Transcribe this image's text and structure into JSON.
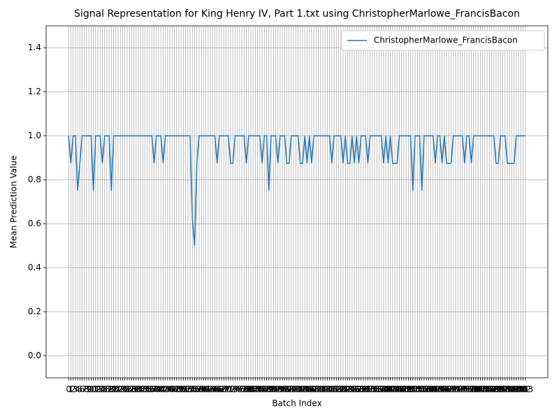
{
  "chart_data": {
    "type": "line",
    "title": "Signal Representation for King Henry IV, Part 1.txt using ChristopherMarlowe_FrancisBacon",
    "x_label": "Batch Index",
    "y_label": "Mean Prediction Value",
    "x": [
      0,
      1,
      2,
      3,
      4,
      5,
      6,
      7,
      8,
      9,
      10,
      11,
      12,
      13,
      14,
      15,
      16,
      17,
      18,
      19,
      20,
      21,
      22,
      23,
      24,
      25,
      26,
      27,
      28,
      29,
      30,
      31,
      32,
      33,
      34,
      35,
      36,
      37,
      38,
      39,
      40,
      41,
      42,
      43,
      44,
      45,
      46,
      47,
      48,
      49,
      50,
      51,
      52,
      53,
      54,
      55,
      56,
      57,
      58,
      59,
      60,
      61,
      62,
      63,
      64,
      65,
      66,
      67,
      68,
      69,
      70,
      71,
      72,
      73,
      74,
      75,
      76,
      77,
      78,
      79,
      80,
      81,
      82,
      83,
      84,
      85,
      86,
      87,
      88,
      89,
      90,
      91,
      92,
      93,
      94,
      95,
      96,
      97,
      98,
      99,
      100,
      101,
      102,
      103,
      104,
      105,
      106,
      107,
      108,
      109,
      110,
      111,
      112,
      113,
      114,
      115,
      116,
      117,
      118,
      119,
      120,
      121,
      122,
      123,
      124,
      125,
      126,
      127,
      128,
      129,
      130,
      131,
      132,
      133,
      134,
      135,
      136,
      137,
      138,
      139,
      140,
      141,
      142,
      143,
      144,
      145,
      146,
      147,
      148,
      149,
      150,
      151,
      152,
      153,
      154,
      155,
      156,
      157,
      158,
      159,
      160,
      161,
      162,
      163,
      164,
      165,
      166,
      167,
      168,
      169,
      170,
      171,
      172,
      173,
      174,
      175,
      176,
      177,
      178,
      179,
      180,
      181,
      182,
      183,
      184,
      185,
      186,
      187,
      188,
      189,
      190,
      191,
      192,
      193,
      194,
      195,
      196,
      197,
      198,
      199,
      200,
      201,
      202,
      203
    ],
    "series": [
      {
        "name": "ChristopherMarlowe_FrancisBacon",
        "color": "#1f77b4",
        "values": [
          1,
          0.875,
          1,
          1,
          0.75,
          0.875,
          1,
          1,
          1,
          1,
          1,
          0.75,
          1,
          1,
          1,
          0.875,
          1,
          1,
          1,
          0.75,
          1,
          1,
          1,
          1,
          1,
          1,
          1,
          1,
          1,
          1,
          1,
          1,
          1,
          1,
          1,
          1,
          1,
          1,
          0.875,
          1,
          1,
          1,
          0.875,
          1,
          1,
          1,
          1,
          1,
          1,
          1,
          1,
          1,
          1,
          1,
          1,
          0.625,
          0.5,
          0.875,
          1,
          1,
          1,
          1,
          1,
          1,
          1,
          1,
          0.875,
          1,
          1,
          1,
          1,
          1,
          0.875,
          0.875,
          1,
          1,
          1,
          1,
          1,
          0.875,
          1,
          1,
          1,
          1,
          1,
          1,
          0.875,
          1,
          1,
          0.75,
          1,
          1,
          1,
          0.875,
          1,
          1,
          1,
          0.875,
          0.875,
          1,
          1,
          1,
          1,
          0.875,
          0.875,
          1,
          0.875,
          1,
          0.875,
          1,
          1,
          1,
          1,
          1,
          1,
          1,
          1,
          0.875,
          1,
          1,
          1,
          1,
          0.875,
          1,
          0.875,
          0.875,
          1,
          0.875,
          1,
          0.875,
          1,
          1,
          1,
          0.875,
          1,
          1,
          1,
          1,
          1,
          1,
          0.875,
          1,
          0.875,
          1,
          0.875,
          0.875,
          0.875,
          1,
          1,
          1,
          1,
          1,
          1,
          0.75,
          1,
          1,
          1,
          0.75,
          1,
          1,
          1,
          1,
          1,
          0.875,
          1,
          1,
          0.875,
          1,
          0.875,
          0.875,
          0.875,
          1,
          1,
          1,
          1,
          1,
          0.875,
          1,
          1,
          0.875,
          1,
          1,
          1,
          1,
          1,
          1,
          1,
          1,
          1,
          1,
          0.875,
          0.875,
          1,
          1,
          1,
          0.875,
          0.875,
          0.875,
          0.875,
          1,
          1,
          1,
          1,
          1
        ]
      }
    ],
    "xlim": [
      -10,
      213
    ],
    "ylim": [
      -0.1,
      1.5
    ],
    "xticks": [
      0,
      1,
      2,
      3,
      4,
      5,
      6,
      7,
      8,
      9,
      10,
      11,
      12,
      13,
      14,
      15,
      16,
      17,
      18,
      19,
      20,
      21,
      22,
      23,
      24,
      25,
      26,
      27,
      28,
      29,
      30,
      31,
      32,
      33,
      34,
      35,
      36,
      37,
      38,
      39,
      40,
      41,
      42,
      43,
      44,
      45,
      46,
      47,
      48,
      49,
      50,
      51,
      52,
      53,
      54,
      55,
      56,
      57,
      58,
      59,
      60,
      61,
      62,
      63,
      64,
      65,
      66,
      67,
      68,
      69,
      70,
      71,
      72,
      73,
      74,
      75,
      76,
      77,
      78,
      79,
      80,
      81,
      82,
      83,
      84,
      85,
      86,
      87,
      88,
      89,
      90,
      91,
      92,
      93,
      94,
      95,
      96,
      97,
      98,
      99,
      100,
      101,
      102,
      103,
      104,
      105,
      106,
      107,
      108,
      109,
      110,
      111,
      112,
      113,
      114,
      115,
      116,
      117,
      118,
      119,
      120,
      121,
      122,
      123,
      124,
      125,
      126,
      127,
      128,
      129,
      130,
      131,
      132,
      133,
      134,
      135,
      136,
      137,
      138,
      139,
      140,
      141,
      142,
      143,
      144,
      145,
      146,
      147,
      148,
      149,
      150,
      151,
      152,
      153,
      154,
      155,
      156,
      157,
      158,
      159,
      160,
      161,
      162,
      163,
      164,
      165,
      166,
      167,
      168,
      169,
      170,
      171,
      172,
      173,
      174,
      175,
      176,
      177,
      178,
      179,
      180,
      181,
      182,
      183,
      184,
      185,
      186,
      187,
      188,
      189,
      190,
      191,
      192,
      193,
      194,
      195,
      196,
      197,
      198,
      199,
      200,
      201,
      202,
      203
    ],
    "yticks": [
      {
        "value": 0,
        "label": "0.0"
      },
      {
        "value": 0.2,
        "label": "0.2"
      },
      {
        "value": 0.4,
        "label": "0.4"
      },
      {
        "value": 0.6,
        "label": "0.6"
      },
      {
        "value": 0.8,
        "label": "0.8"
      },
      {
        "value": 1,
        "label": "1.0"
      },
      {
        "value": 1.2,
        "label": "1.2"
      },
      {
        "value": 1.4,
        "label": "1.4"
      }
    ],
    "grid": true,
    "legend": "upper right"
  }
}
